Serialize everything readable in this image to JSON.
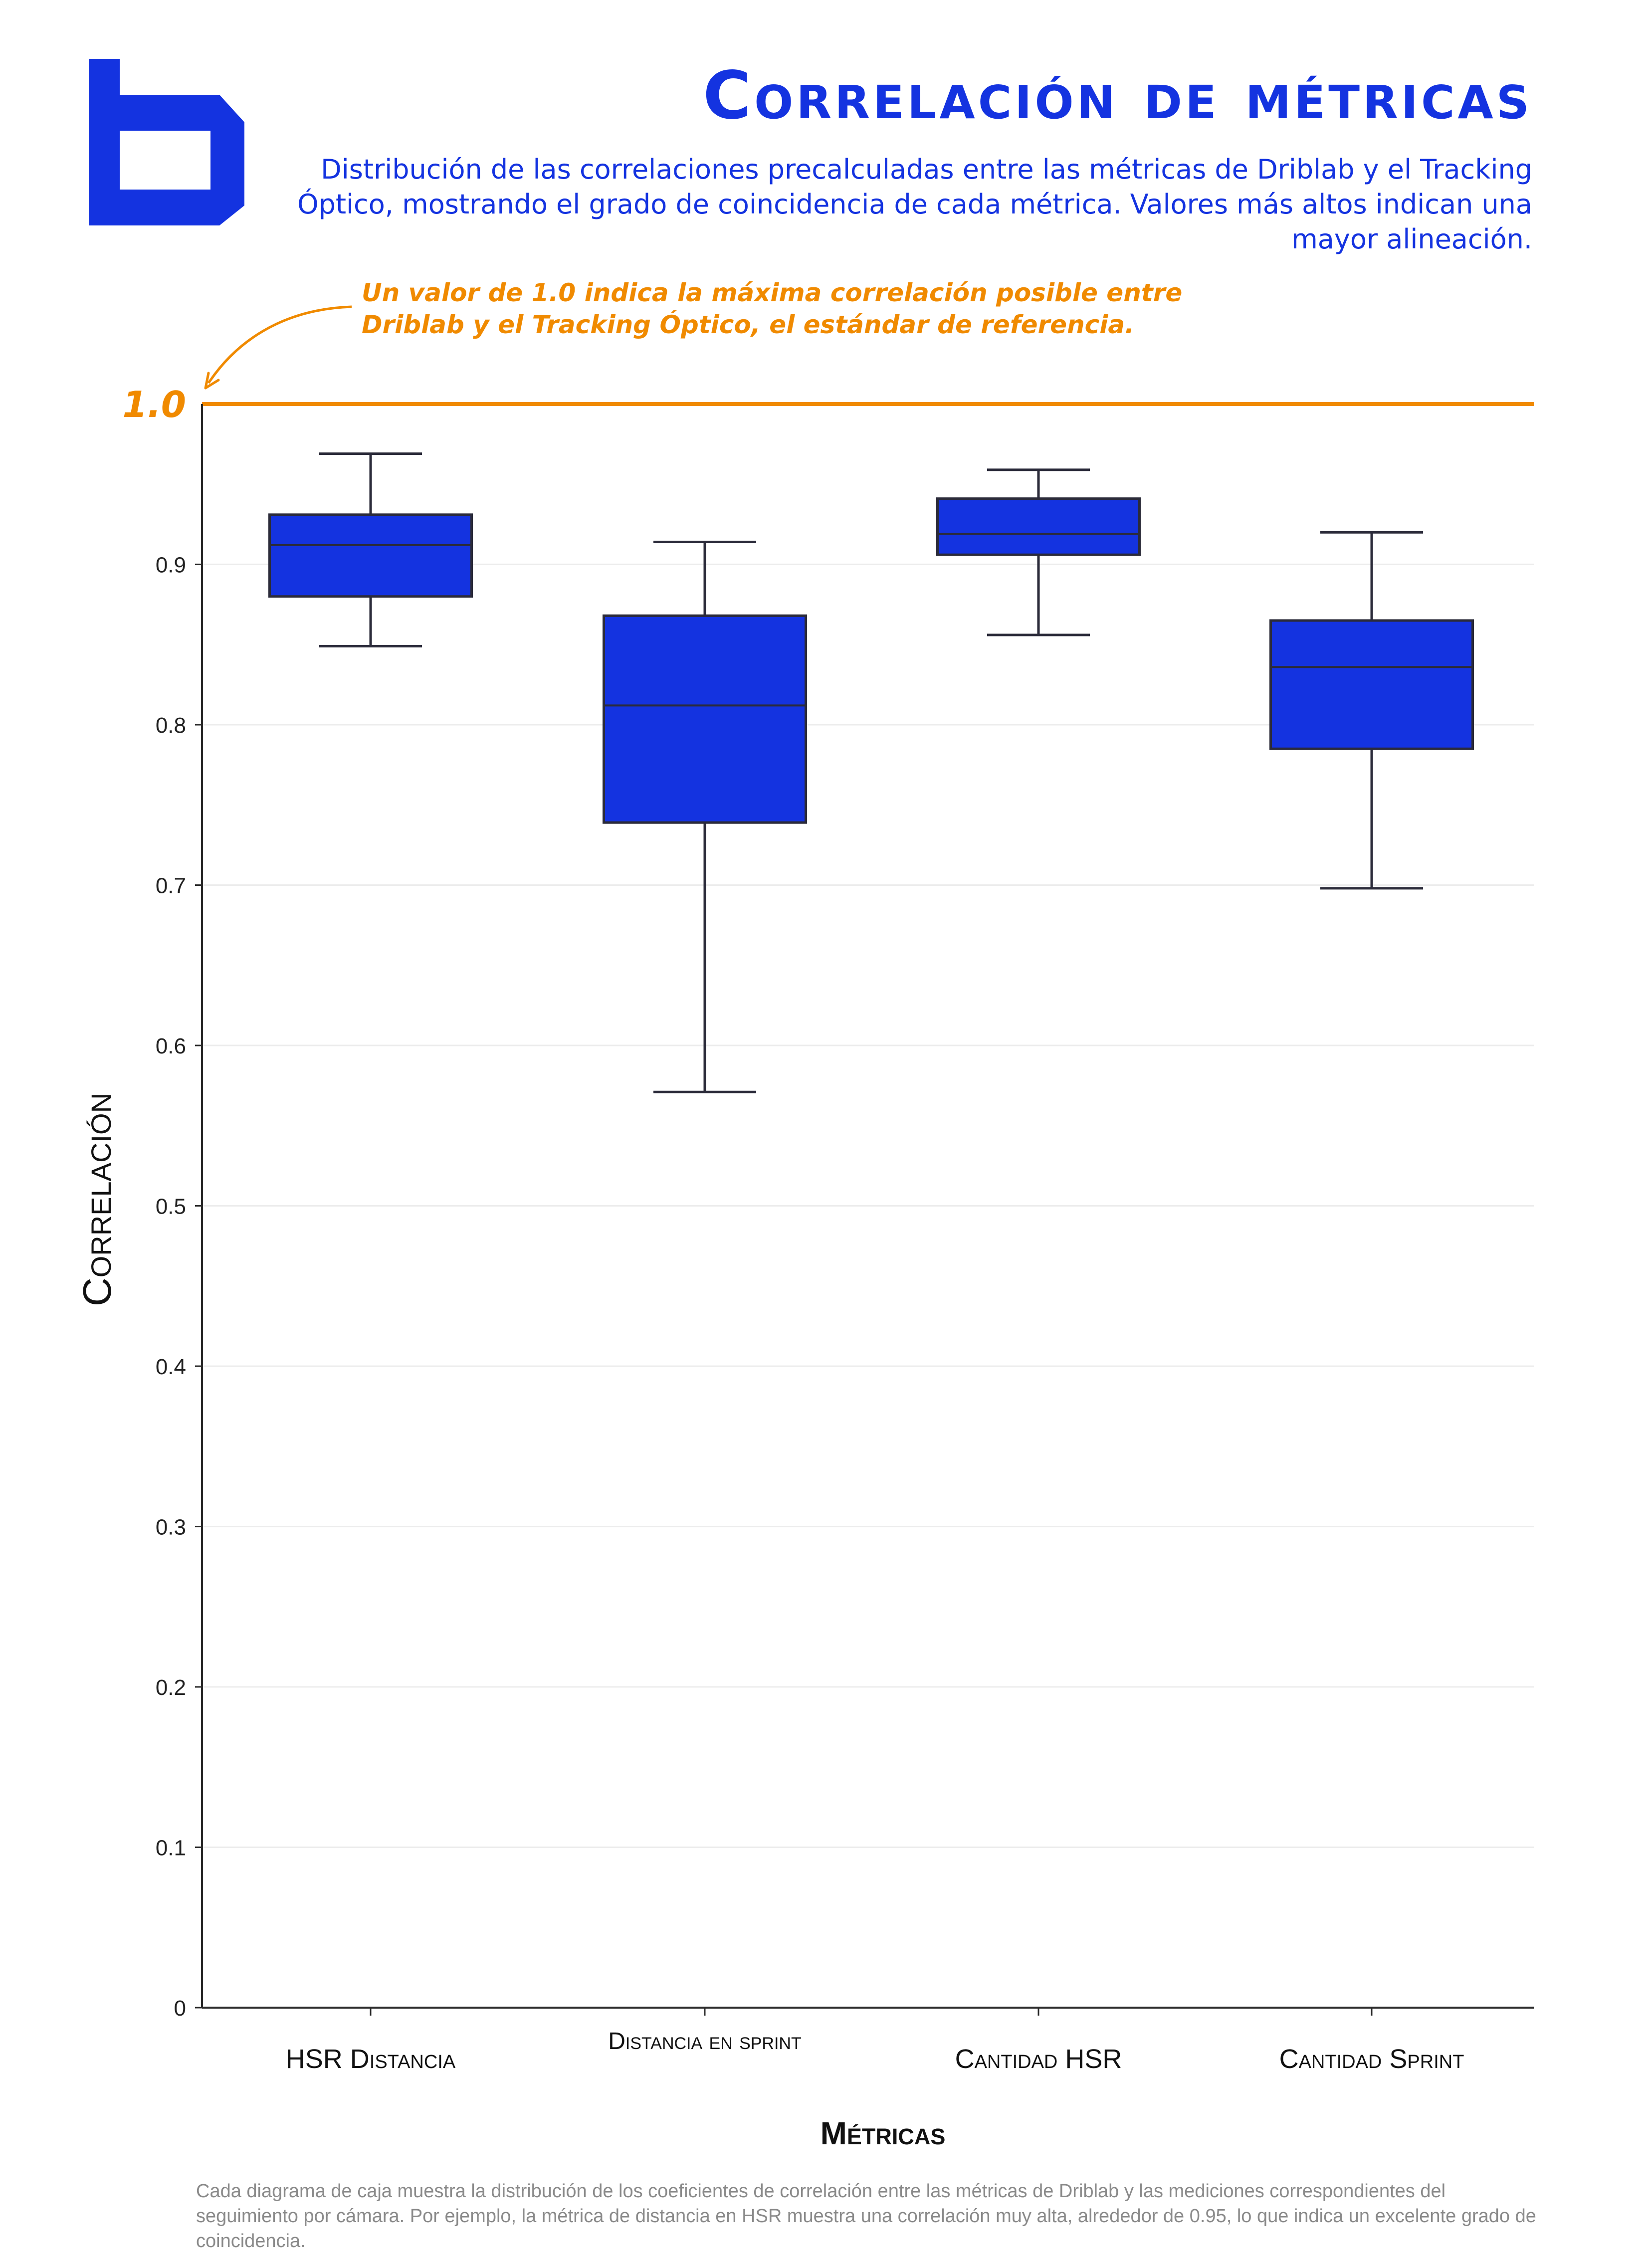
{
  "title": "Correlación de métricas",
  "subtitle": "Distribución de las correlaciones precalculadas entre las métricas de Driblab y el Tracking Óptico, mostrando el grado de coincidencia de cada métrica. Valores más altos indican una mayor alineación.",
  "annotation": "Un valor de 1.0 indica la máxima correlación posible entre Driblab y el Tracking Óptico, el estándar de referencia.",
  "footnote": "Cada diagrama de caja muestra la distribución de los coeficientes de correlación entre las métricas de Driblab y las mediciones correspondientes del seguimiento por cámara. Por ejemplo, la métrica de distancia en HSR muestra una correlación muy alta, alrededor de 0.95, lo que indica un excelente grado de coincidencia.",
  "colors": {
    "brand": "#1433e0",
    "accent": "#f08a00",
    "box": "#1433e0",
    "whisker": "#2b2b3a",
    "grid": "#ececec"
  },
  "chart_data": {
    "type": "box",
    "title": "Correlación de métricas",
    "xlabel": "Métricas",
    "ylabel": "Correlación",
    "ylim": [
      0,
      1.0
    ],
    "yticks": [
      0,
      0.1,
      0.2,
      0.3,
      0.4,
      0.5,
      0.6,
      0.7,
      0.8,
      0.9
    ],
    "ytick_labels": [
      "0",
      "0.1",
      "0.2",
      "0.3",
      "0.4",
      "0.5",
      "0.6",
      "0.7",
      "0.8",
      "0.9"
    ],
    "reference_line": {
      "value": 1.0,
      "label": "1.0"
    },
    "grid": true,
    "categories": [
      "HSR Distancia",
      "Distancia en sprint",
      "Cantidad HSR",
      "Cantidad Sprint"
    ],
    "boxes": [
      {
        "name": "HSR Distancia",
        "whisker_low": 0.849,
        "q1": 0.88,
        "median": 0.912,
        "q3": 0.931,
        "whisker_high": 0.969
      },
      {
        "name": "Distancia en sprint",
        "whisker_low": 0.571,
        "q1": 0.739,
        "median": 0.812,
        "q3": 0.868,
        "whisker_high": 0.914
      },
      {
        "name": "Cantidad HSR",
        "whisker_low": 0.856,
        "q1": 0.906,
        "median": 0.919,
        "q3": 0.941,
        "whisker_high": 0.959
      },
      {
        "name": "Cantidad Sprint",
        "whisker_low": 0.698,
        "q1": 0.785,
        "median": 0.836,
        "q3": 0.865,
        "whisker_high": 0.92
      }
    ]
  }
}
